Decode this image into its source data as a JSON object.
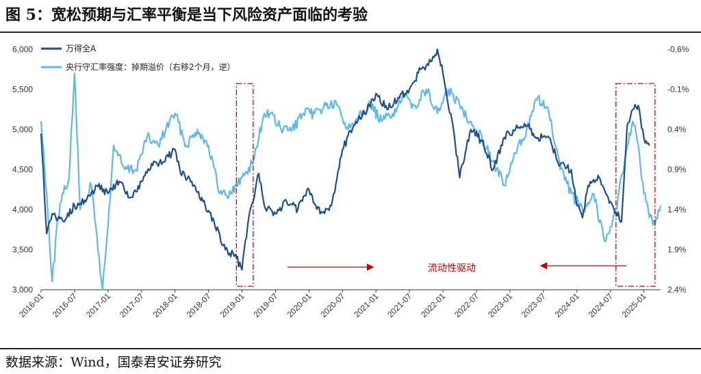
{
  "header": {
    "title": "图 5：宽松预期与汇率平衡是当下风险资产面临的考验"
  },
  "footer": {
    "source": "数据来源：Wind，国泰君安证券研究"
  },
  "colors": {
    "wind_a": "#1f4e8c",
    "fx_strength": "#5eb8e8",
    "annotation": "#c00000",
    "axis": "#333333"
  },
  "chart_data": {
    "type": "line",
    "title": "宽松预期与汇率平衡是当下风险资产面临的考验",
    "x_axis": {
      "tick_labels": [
        "2016-01",
        "2016-07",
        "2017-01",
        "2017-07",
        "2018-01",
        "2018-07",
        "2019-01",
        "2019-07",
        "2020-01",
        "2020-07",
        "2021-01",
        "2021-07",
        "2022-01",
        "2022-07",
        "2023-01",
        "2023-07",
        "2024-01",
        "2024-07",
        "2025-01"
      ],
      "range": [
        "2016-01",
        "2025-04"
      ]
    },
    "y_left": {
      "range": [
        3000,
        6000
      ],
      "tick_labels": [
        "6,000",
        "5,500",
        "5,000",
        "4,500",
        "4,000",
        "3,500",
        "3,000"
      ]
    },
    "y_right": {
      "range_top_to_bottom": [
        -0.6,
        2.4
      ],
      "tick_labels": [
        "-0.6%",
        "-0.1%",
        "0.4%",
        "0.9%",
        "1.4%",
        "1.9%",
        "2.4%"
      ],
      "inverted": true
    },
    "series": [
      {
        "name": "万得全A",
        "axis": "left",
        "points": [
          [
            "2016-01",
            4950
          ],
          [
            "2016-02",
            3700
          ],
          [
            "2016-03",
            3950
          ],
          [
            "2016-05",
            3850
          ],
          [
            "2016-07",
            4050
          ],
          [
            "2016-09",
            4100
          ],
          [
            "2016-11",
            4300
          ],
          [
            "2017-01",
            4200
          ],
          [
            "2017-03",
            4350
          ],
          [
            "2017-05",
            4150
          ],
          [
            "2017-07",
            4350
          ],
          [
            "2017-09",
            4550
          ],
          [
            "2017-11",
            4600
          ],
          [
            "2018-01",
            4750
          ],
          [
            "2018-02",
            4450
          ],
          [
            "2018-04",
            4350
          ],
          [
            "2018-06",
            4100
          ],
          [
            "2018-08",
            3850
          ],
          [
            "2018-10",
            3500
          ],
          [
            "2018-12",
            3400
          ],
          [
            "2019-01",
            3250
          ],
          [
            "2019-02",
            3800
          ],
          [
            "2019-04",
            4450
          ],
          [
            "2019-05",
            4050
          ],
          [
            "2019-07",
            3950
          ],
          [
            "2019-09",
            4100
          ],
          [
            "2019-11",
            4000
          ],
          [
            "2020-01",
            4250
          ],
          [
            "2020-03",
            3950
          ],
          [
            "2020-05",
            4050
          ],
          [
            "2020-07",
            4750
          ],
          [
            "2020-09",
            5050
          ],
          [
            "2020-11",
            5200
          ],
          [
            "2021-01",
            5450
          ],
          [
            "2021-03",
            5250
          ],
          [
            "2021-05",
            5400
          ],
          [
            "2021-07",
            5500
          ],
          [
            "2021-09",
            5750
          ],
          [
            "2021-11",
            5850
          ],
          [
            "2021-12",
            6000
          ],
          [
            "2022-01",
            5700
          ],
          [
            "2022-03",
            4950
          ],
          [
            "2022-04",
            4400
          ],
          [
            "2022-06",
            5000
          ],
          [
            "2022-08",
            4850
          ],
          [
            "2022-10",
            4500
          ],
          [
            "2022-12",
            4900
          ],
          [
            "2023-02",
            5000
          ],
          [
            "2023-04",
            5050
          ],
          [
            "2023-06",
            4900
          ],
          [
            "2023-08",
            4900
          ],
          [
            "2023-10",
            4550
          ],
          [
            "2023-12",
            4500
          ],
          [
            "2024-01",
            4050
          ],
          [
            "2024-02",
            3900
          ],
          [
            "2024-03",
            4300
          ],
          [
            "2024-05",
            4400
          ],
          [
            "2024-07",
            4100
          ],
          [
            "2024-09",
            3850
          ],
          [
            "2024-10",
            5050
          ],
          [
            "2024-11",
            5250
          ],
          [
            "2024-12",
            5300
          ],
          [
            "2025-01",
            4900
          ],
          [
            "2025-02",
            4800
          ]
        ]
      },
      {
        "name": "央行守汇率强度：掉期溢价（右移2个月，逆）",
        "axis": "right",
        "points": [
          [
            "2016-01",
            0.3
          ],
          [
            "2016-02",
            1.2
          ],
          [
            "2016-03",
            2.3
          ],
          [
            "2016-04",
            1.5
          ],
          [
            "2016-05",
            1.2
          ],
          [
            "2016-06",
            1.0
          ],
          [
            "2016-07",
            -0.3
          ],
          [
            "2016-08",
            1.4
          ],
          [
            "2016-10",
            1.1
          ],
          [
            "2016-12",
            2.4
          ],
          [
            "2017-01",
            1.6
          ],
          [
            "2017-02",
            0.6
          ],
          [
            "2017-04",
            0.9
          ],
          [
            "2017-06",
            0.9
          ],
          [
            "2017-08",
            0.5
          ],
          [
            "2017-10",
            0.6
          ],
          [
            "2017-12",
            0.3
          ],
          [
            "2018-01",
            0.2
          ],
          [
            "2018-03",
            0.6
          ],
          [
            "2018-05",
            0.4
          ],
          [
            "2018-07",
            0.6
          ],
          [
            "2018-09",
            1.2
          ],
          [
            "2018-11",
            1.2
          ],
          [
            "2019-01",
            1.0
          ],
          [
            "2019-03",
            0.8
          ],
          [
            "2019-05",
            0.2
          ],
          [
            "2019-06",
            0.2
          ],
          [
            "2019-08",
            0.4
          ],
          [
            "2019-10",
            0.4
          ],
          [
            "2019-12",
            0.2
          ],
          [
            "2020-02",
            0.2
          ],
          [
            "2020-04",
            0.1
          ],
          [
            "2020-06",
            0.1
          ],
          [
            "2020-08",
            0.4
          ],
          [
            "2020-10",
            0.2
          ],
          [
            "2020-12",
            0.1
          ],
          [
            "2021-02",
            0.3
          ],
          [
            "2021-04",
            0.2
          ],
          [
            "2021-06",
            0.0
          ],
          [
            "2021-08",
            0.1
          ],
          [
            "2021-10",
            -0.1
          ],
          [
            "2021-12",
            0.2
          ],
          [
            "2022-02",
            -0.1
          ],
          [
            "2022-04",
            0.1
          ],
          [
            "2022-06",
            0.3
          ],
          [
            "2022-08",
            0.5
          ],
          [
            "2022-10",
            0.8
          ],
          [
            "2022-12",
            1.1
          ],
          [
            "2023-02",
            0.7
          ],
          [
            "2023-04",
            0.4
          ],
          [
            "2023-06",
            0.0
          ],
          [
            "2023-08",
            0.2
          ],
          [
            "2023-10",
            0.9
          ],
          [
            "2023-12",
            1.2
          ],
          [
            "2024-02",
            1.4
          ],
          [
            "2024-04",
            1.2
          ],
          [
            "2024-06",
            1.8
          ],
          [
            "2024-08",
            1.4
          ],
          [
            "2024-10",
            0.6
          ],
          [
            "2024-11",
            0.3
          ],
          [
            "2024-12",
            0.6
          ],
          [
            "2025-01",
            1.2
          ],
          [
            "2025-02",
            1.5
          ],
          [
            "2025-03",
            1.6
          ],
          [
            "2025-04",
            1.35
          ]
        ]
      }
    ],
    "legend": [
      {
        "name": "万得全A",
        "placement": "top-left"
      },
      {
        "name": "央行守汇率强度：掉期溢价（右移2个月，逆）",
        "placement": "top-left"
      }
    ],
    "annotations": {
      "text": "流动性驱动",
      "boxes": [
        {
          "from": "2018-12",
          "to": "2019-03"
        },
        {
          "from": "2024-08",
          "to": "2025-03"
        }
      ],
      "arrows": [
        "left-to-right",
        "right-to-left"
      ]
    }
  }
}
